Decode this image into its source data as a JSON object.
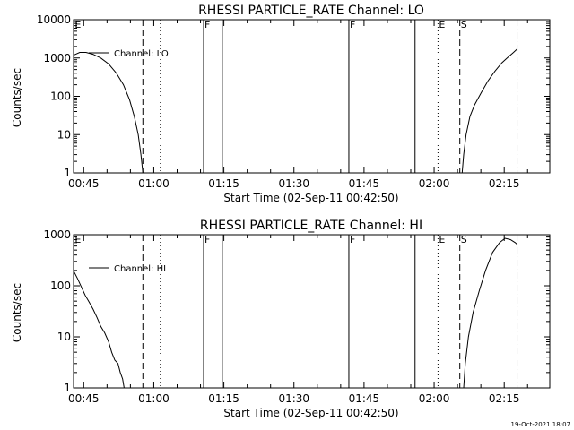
{
  "footer": {
    "timestamp": "19-Oct-2021 18:07"
  },
  "chart_data": [
    {
      "type": "line",
      "title": "RHESSI PARTICLE_RATE Channel: LO",
      "xlabel": "Start Time (02-Sep-11 00:42:50)",
      "ylabel": "Counts/sec",
      "yscale": "log",
      "ylim": [
        1,
        10000
      ],
      "yticks": [
        1,
        10,
        100,
        1000,
        10000
      ],
      "ytick_labels": [
        "1",
        "10",
        "100",
        "1000",
        "10000"
      ],
      "xlim": [
        "00:42:50",
        "02:24:45"
      ],
      "xtick_labels": [
        "00:45",
        "01:00",
        "01:15",
        "01:30",
        "01:45",
        "02:00",
        "02:15"
      ],
      "legend": {
        "placement": "top-left",
        "label": "Channel: LO"
      },
      "markers": [
        {
          "label": "E",
          "time": "00:42:55",
          "style": "solid"
        },
        {
          "label": "",
          "time": "00:57:40",
          "style": "dashed"
        },
        {
          "label": "",
          "time": "01:01:25",
          "style": "dotted"
        },
        {
          "label": "F",
          "time": "01:10:40",
          "style": "solid"
        },
        {
          "label": "",
          "time": "01:14:40",
          "style": "solid"
        },
        {
          "label": "F",
          "time": "01:41:45",
          "style": "solid"
        },
        {
          "label": "",
          "time": "01:55:55",
          "style": "solid"
        },
        {
          "label": "E",
          "time": "02:00:50",
          "style": "dotted"
        },
        {
          "label": "S",
          "time": "02:05:30",
          "style": "dashed"
        },
        {
          "label": "",
          "time": "02:17:45",
          "style": "dashdot"
        }
      ],
      "series": [
        {
          "name": "Channel: LO",
          "segments": [
            [
              [
                "00:42:55",
                1200
              ],
              [
                "00:44:10",
                1400
              ],
              [
                "00:45:30",
                1400
              ],
              [
                "00:47:00",
                1250
              ],
              [
                "00:48:40",
                1000
              ],
              [
                "00:50:20",
                700
              ],
              [
                "00:52:00",
                400
              ],
              [
                "00:53:30",
                200
              ],
              [
                "00:54:50",
                80
              ],
              [
                "00:55:50",
                30
              ],
              [
                "00:56:40",
                10
              ],
              [
                "00:57:15",
                3
              ],
              [
                "00:57:40",
                1
              ]
            ],
            [
              [
                "02:06:00",
                1
              ],
              [
                "02:06:20",
                3
              ],
              [
                "02:06:50",
                10
              ],
              [
                "02:07:40",
                30
              ],
              [
                "02:08:40",
                60
              ],
              [
                "02:10:00",
                120
              ],
              [
                "02:11:30",
                250
              ],
              [
                "02:13:00",
                450
              ],
              [
                "02:14:30",
                750
              ],
              [
                "02:16:00",
                1100
              ],
              [
                "02:17:00",
                1400
              ],
              [
                "02:17:45",
                1700
              ]
            ]
          ]
        }
      ]
    },
    {
      "type": "line",
      "title": "RHESSI PARTICLE_RATE Channel: HI",
      "xlabel": "Start Time (02-Sep-11 00:42:50)",
      "ylabel": "Counts/sec",
      "yscale": "log",
      "ylim": [
        1,
        1000
      ],
      "yticks": [
        1,
        10,
        100,
        1000
      ],
      "ytick_labels": [
        "1",
        "10",
        "100",
        "1000"
      ],
      "xlim": [
        "00:42:50",
        "02:24:45"
      ],
      "xtick_labels": [
        "00:45",
        "01:00",
        "01:15",
        "01:30",
        "01:45",
        "02:00",
        "02:15"
      ],
      "legend": {
        "placement": "top-left",
        "label": "Channel: HI"
      },
      "markers": [
        {
          "label": "E",
          "time": "00:42:55",
          "style": "solid"
        },
        {
          "label": "",
          "time": "00:57:40",
          "style": "dashed"
        },
        {
          "label": "",
          "time": "01:01:25",
          "style": "dotted"
        },
        {
          "label": "F",
          "time": "01:10:40",
          "style": "solid"
        },
        {
          "label": "",
          "time": "01:14:40",
          "style": "solid"
        },
        {
          "label": "F",
          "time": "01:41:45",
          "style": "solid"
        },
        {
          "label": "",
          "time": "01:55:55",
          "style": "solid"
        },
        {
          "label": "E",
          "time": "02:00:50",
          "style": "dotted"
        },
        {
          "label": "S",
          "time": "02:05:30",
          "style": "dashed"
        },
        {
          "label": "",
          "time": "02:17:45",
          "style": "dashdot"
        }
      ],
      "series": [
        {
          "name": "Channel: HI",
          "segments": [
            [
              [
                "00:42:55",
                190
              ],
              [
                "00:43:40",
                140
              ],
              [
                "00:44:30",
                95
              ],
              [
                "00:45:20",
                65
              ],
              [
                "00:46:10",
                48
              ],
              [
                "00:47:00",
                35
              ],
              [
                "00:47:50",
                24
              ],
              [
                "00:48:40",
                16
              ],
              [
                "00:49:30",
                12
              ],
              [
                "00:50:20",
                8
              ],
              [
                "00:51:00",
                5
              ],
              [
                "00:51:40",
                3.5
              ],
              [
                "00:52:20",
                3
              ],
              [
                "00:52:50",
                2
              ],
              [
                "00:53:20",
                1.5
              ],
              [
                "00:53:40",
                1
              ]
            ],
            [
              [
                "02:06:20",
                1
              ],
              [
                "02:06:40",
                3
              ],
              [
                "02:07:20",
                10
              ],
              [
                "02:08:20",
                30
              ],
              [
                "02:09:40",
                80
              ],
              [
                "02:11:00",
                200
              ],
              [
                "02:12:30",
                450
              ],
              [
                "02:14:00",
                700
              ],
              [
                "02:15:10",
                850
              ],
              [
                "02:16:20",
                800
              ],
              [
                "02:17:20",
                700
              ],
              [
                "02:17:45",
                650
              ]
            ]
          ]
        }
      ]
    }
  ]
}
